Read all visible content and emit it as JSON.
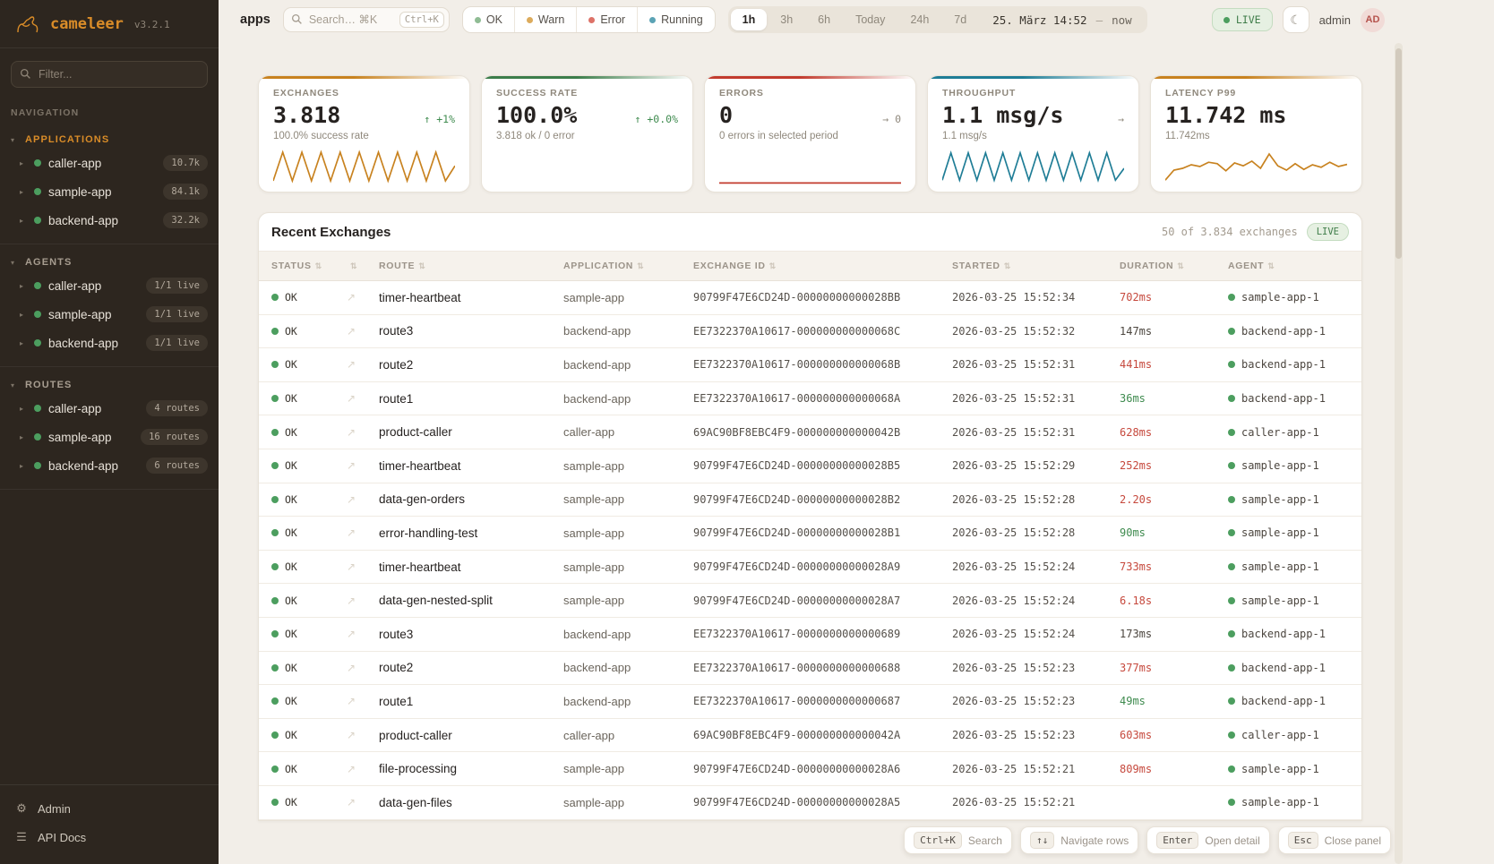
{
  "sidebar": {
    "logo": {
      "name": "cameleer",
      "version": "v3.2.1"
    },
    "filter_placeholder": "Filter...",
    "nav_label": "NAVIGATION",
    "groups": [
      {
        "title": "APPLICATIONS",
        "accent": true,
        "items": [
          {
            "label": "caller-app",
            "badge": "10.7k"
          },
          {
            "label": "sample-app",
            "badge": "84.1k"
          },
          {
            "label": "backend-app",
            "badge": "32.2k"
          }
        ]
      },
      {
        "title": "AGENTS",
        "accent": false,
        "items": [
          {
            "label": "caller-app",
            "badge": "1/1 live"
          },
          {
            "label": "sample-app",
            "badge": "1/1 live"
          },
          {
            "label": "backend-app",
            "badge": "1/1 live"
          }
        ]
      },
      {
        "title": "ROUTES",
        "accent": false,
        "items": [
          {
            "label": "caller-app",
            "badge": "4 routes"
          },
          {
            "label": "sample-app",
            "badge": "16 routes"
          },
          {
            "label": "backend-app",
            "badge": "6 routes"
          }
        ]
      }
    ],
    "footer": [
      {
        "label": "Admin",
        "icon": "gear-icon"
      },
      {
        "label": "API Docs",
        "icon": "docs-icon"
      }
    ]
  },
  "topbar": {
    "context_label": "apps",
    "search": {
      "placeholder": "Search… ⌘K",
      "kbd": "Ctrl+K"
    },
    "status_filters": [
      {
        "label": "OK",
        "color": "#8fbc94"
      },
      {
        "label": "Warn",
        "color": "#dcab5c"
      },
      {
        "label": "Error",
        "color": "#dd7268"
      },
      {
        "label": "Running",
        "color": "#5ba3b5"
      }
    ],
    "time_ranges": [
      "1h",
      "3h",
      "6h",
      "Today",
      "24h",
      "7d"
    ],
    "active_range": "1h",
    "date_from": "25. März 14:52",
    "date_sep": "—",
    "date_to": "now",
    "live_label": "LIVE",
    "user": "admin",
    "avatar": "AD"
  },
  "cards": [
    {
      "label": "EXCHANGES",
      "value": "3.818",
      "trend": "↑ +1%",
      "trend_color": "green",
      "sub": "100.0% success rate",
      "accent": "#c8821f",
      "spark": [
        90,
        10,
        90,
        10,
        90,
        10,
        90,
        10,
        90,
        10,
        90,
        10,
        90,
        10,
        90,
        10,
        90,
        10,
        90,
        48
      ]
    },
    {
      "label": "SUCCESS RATE",
      "value": "100.0%",
      "trend": "↑ +0.0%",
      "trend_color": "green",
      "sub": "3.818 ok / 0 error",
      "accent": "#3c7d4a",
      "spark": []
    },
    {
      "label": "ERRORS",
      "value": "0",
      "trend": "→ 0",
      "trend_color": "gray",
      "sub": "0 errors in selected period",
      "accent": "#c23b2e",
      "spark": [
        96,
        96
      ]
    },
    {
      "label": "THROUGHPUT",
      "value": "1.1 msg/s",
      "trend": "→",
      "trend_color": "gray",
      "sub": "1.1 msg/s",
      "accent": "#1f7d96",
      "spark": [
        88,
        12,
        88,
        12,
        88,
        12,
        88,
        12,
        88,
        12,
        88,
        12,
        88,
        12,
        88,
        12,
        88,
        12,
        88,
        12,
        88,
        55
      ]
    },
    {
      "label": "LATENCY P99",
      "value": "11.742 ms",
      "trend": "",
      "trend_color": "gray",
      "sub": "11.742ms",
      "accent": "#c8821f",
      "spark": [
        88,
        60,
        55,
        45,
        50,
        38,
        42,
        62,
        40,
        48,
        35,
        55,
        15,
        48,
        60,
        42,
        58,
        45,
        52,
        38,
        50,
        44
      ]
    }
  ],
  "table": {
    "title": "Recent Exchanges",
    "summary": "50 of 3.834 exchanges",
    "live_label": "LIVE",
    "columns": [
      "STATUS",
      "",
      "ROUTE",
      "APPLICATION",
      "EXCHANGE ID",
      "STARTED",
      "DURATION",
      "AGENT"
    ],
    "rows": [
      {
        "status": "OK",
        "route": "timer-heartbeat",
        "app": "sample-app",
        "exchange_id": "90799F47E6CD24D-00000000000028BB",
        "started": "2026-03-25 15:52:34",
        "duration": "702ms",
        "duration_level": "slow",
        "agent": "sample-app-1"
      },
      {
        "status": "OK",
        "route": "route3",
        "app": "backend-app",
        "exchange_id": "EE7322370A10617-000000000000068C",
        "started": "2026-03-25 15:52:32",
        "duration": "147ms",
        "duration_level": "normal",
        "agent": "backend-app-1"
      },
      {
        "status": "OK",
        "route": "route2",
        "app": "backend-app",
        "exchange_id": "EE7322370A10617-000000000000068B",
        "started": "2026-03-25 15:52:31",
        "duration": "441ms",
        "duration_level": "slow",
        "agent": "backend-app-1"
      },
      {
        "status": "OK",
        "route": "route1",
        "app": "backend-app",
        "exchange_id": "EE7322370A10617-000000000000068A",
        "started": "2026-03-25 15:52:31",
        "duration": "36ms",
        "duration_level": "fast",
        "agent": "backend-app-1"
      },
      {
        "status": "OK",
        "route": "product-caller",
        "app": "caller-app",
        "exchange_id": "69AC90BF8EBC4F9-000000000000042B",
        "started": "2026-03-25 15:52:31",
        "duration": "628ms",
        "duration_level": "slow",
        "agent": "caller-app-1"
      },
      {
        "status": "OK",
        "route": "timer-heartbeat",
        "app": "sample-app",
        "exchange_id": "90799F47E6CD24D-00000000000028B5",
        "started": "2026-03-25 15:52:29",
        "duration": "252ms",
        "duration_level": "slow",
        "agent": "sample-app-1"
      },
      {
        "status": "OK",
        "route": "data-gen-orders",
        "app": "sample-app",
        "exchange_id": "90799F47E6CD24D-00000000000028B2",
        "started": "2026-03-25 15:52:28",
        "duration": "2.20s",
        "duration_level": "slow",
        "agent": "sample-app-1"
      },
      {
        "status": "OK",
        "route": "error-handling-test",
        "app": "sample-app",
        "exchange_id": "90799F47E6CD24D-00000000000028B1",
        "started": "2026-03-25 15:52:28",
        "duration": "90ms",
        "duration_level": "fast",
        "agent": "sample-app-1"
      },
      {
        "status": "OK",
        "route": "timer-heartbeat",
        "app": "sample-app",
        "exchange_id": "90799F47E6CD24D-00000000000028A9",
        "started": "2026-03-25 15:52:24",
        "duration": "733ms",
        "duration_level": "slow",
        "agent": "sample-app-1"
      },
      {
        "status": "OK",
        "route": "data-gen-nested-split",
        "app": "sample-app",
        "exchange_id": "90799F47E6CD24D-00000000000028A7",
        "started": "2026-03-25 15:52:24",
        "duration": "6.18s",
        "duration_level": "slow",
        "agent": "sample-app-1"
      },
      {
        "status": "OK",
        "route": "route3",
        "app": "backend-app",
        "exchange_id": "EE7322370A10617-0000000000000689",
        "started": "2026-03-25 15:52:24",
        "duration": "173ms",
        "duration_level": "normal",
        "agent": "backend-app-1"
      },
      {
        "status": "OK",
        "route": "route2",
        "app": "backend-app",
        "exchange_id": "EE7322370A10617-0000000000000688",
        "started": "2026-03-25 15:52:23",
        "duration": "377ms",
        "duration_level": "slow",
        "agent": "backend-app-1"
      },
      {
        "status": "OK",
        "route": "route1",
        "app": "backend-app",
        "exchange_id": "EE7322370A10617-0000000000000687",
        "started": "2026-03-25 15:52:23",
        "duration": "49ms",
        "duration_level": "fast",
        "agent": "backend-app-1"
      },
      {
        "status": "OK",
        "route": "product-caller",
        "app": "caller-app",
        "exchange_id": "69AC90BF8EBC4F9-000000000000042A",
        "started": "2026-03-25 15:52:23",
        "duration": "603ms",
        "duration_level": "slow",
        "agent": "caller-app-1"
      },
      {
        "status": "OK",
        "route": "file-processing",
        "app": "sample-app",
        "exchange_id": "90799F47E6CD24D-00000000000028A6",
        "started": "2026-03-25 15:52:21",
        "duration": "809ms",
        "duration_level": "slow",
        "agent": "sample-app-1"
      },
      {
        "status": "OK",
        "route": "data-gen-files",
        "app": "sample-app",
        "exchange_id": "90799F47E6CD24D-00000000000028A5",
        "started": "2026-03-25 15:52:21",
        "duration": "",
        "duration_level": "normal",
        "agent": "sample-app-1"
      }
    ]
  },
  "hints": [
    {
      "key": "Ctrl+K",
      "label": "Search"
    },
    {
      "key": "↑↓",
      "label": "Navigate rows"
    },
    {
      "key": "Enter",
      "label": "Open detail"
    },
    {
      "key": "Esc",
      "label": "Close panel"
    }
  ]
}
